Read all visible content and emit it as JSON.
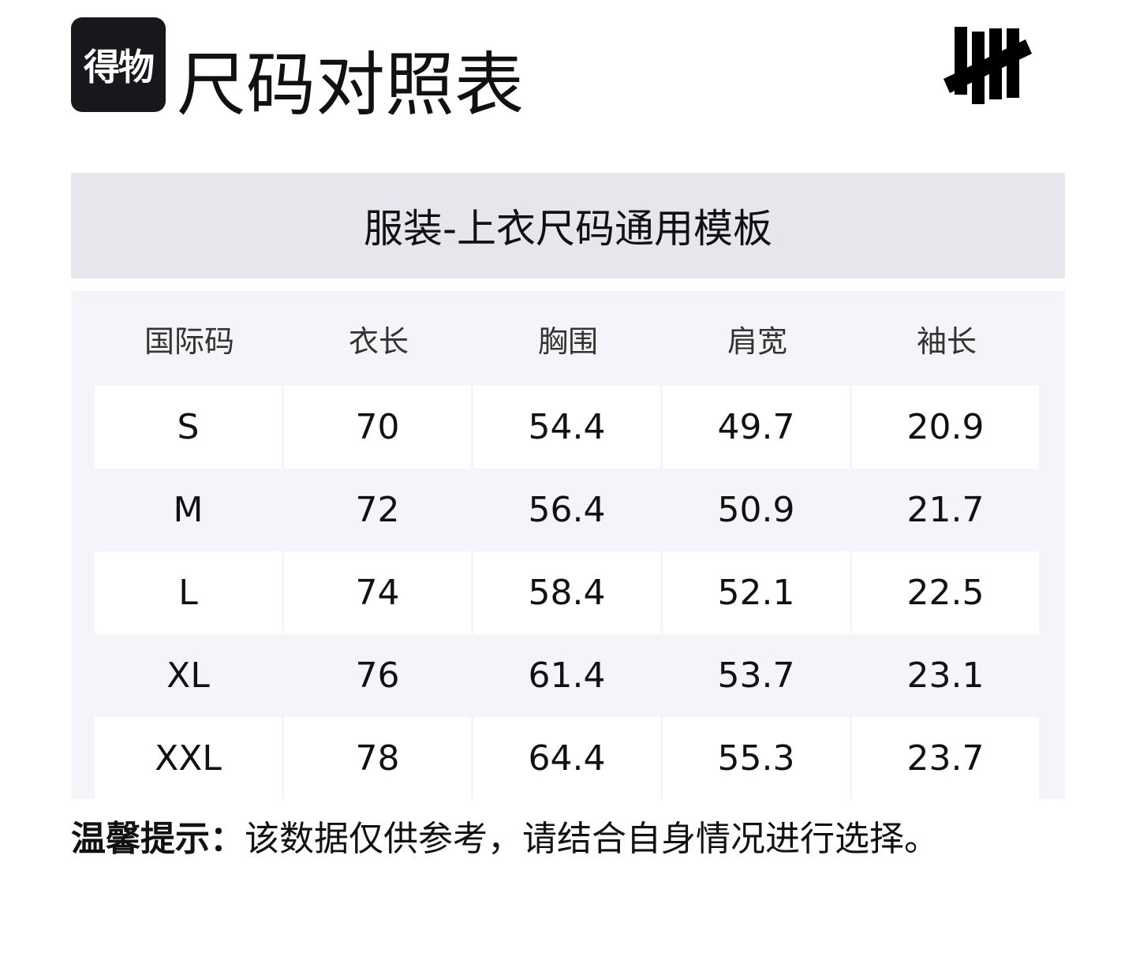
{
  "brand": {
    "logo_text": "得物"
  },
  "page_title": "尺码对照表",
  "partner_logo": "undefeated-logo",
  "table": {
    "title": "服装-上衣尺码通用模板",
    "headers": [
      "国际码",
      "衣长",
      "胸围",
      "肩宽",
      "袖长"
    ],
    "rows": [
      [
        "S",
        "70",
        "54.4",
        "49.7",
        "20.9"
      ],
      [
        "M",
        "72",
        "56.4",
        "50.9",
        "21.7"
      ],
      [
        "L",
        "74",
        "58.4",
        "52.1",
        "22.5"
      ],
      [
        "XL",
        "76",
        "61.4",
        "53.7",
        "23.1"
      ],
      [
        "XXL",
        "78",
        "64.4",
        "55.3",
        "23.7"
      ]
    ]
  },
  "note": {
    "label": "温馨提示：",
    "text": "该数据仅供参考，请结合自身情况进行选择。"
  },
  "colors": {
    "band": "#e6e6ec",
    "panel": "#f5f5f9",
    "brand_bg": "#17171c"
  }
}
